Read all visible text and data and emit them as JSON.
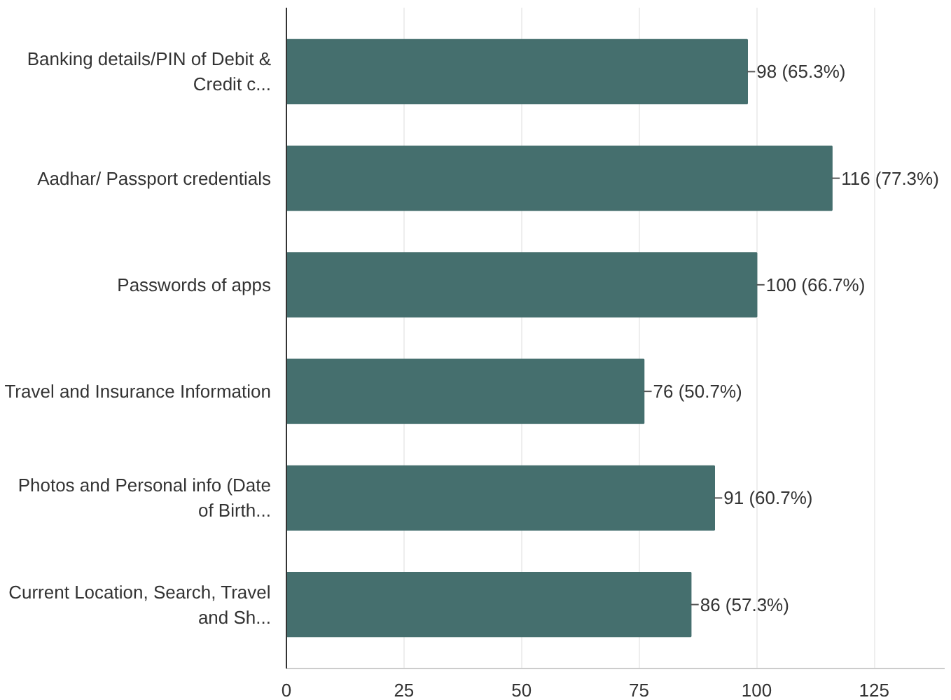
{
  "chart_data": {
    "type": "bar",
    "orientation": "horizontal",
    "categories": [
      "Banking details/PIN of Debit & Credit c...",
      "Aadhar/ Passport credentials",
      "Passwords of apps",
      "Travel and Insurance Information",
      "Photos and Personal info (Date of Birth...",
      "Current Location, Search, Travel and Sh..."
    ],
    "values": [
      98,
      116,
      100,
      76,
      91,
      86
    ],
    "value_labels": [
      "98 (65.3%)",
      "116 (77.3%)",
      "100 (66.7%)",
      "76 (50.7%)",
      "91 (60.7%)",
      "86 (57.3%)"
    ],
    "color": "#456f6e",
    "xlim": [
      0,
      140
    ],
    "xticks": [
      0,
      25,
      50,
      75,
      100,
      125
    ],
    "grid": "x"
  }
}
